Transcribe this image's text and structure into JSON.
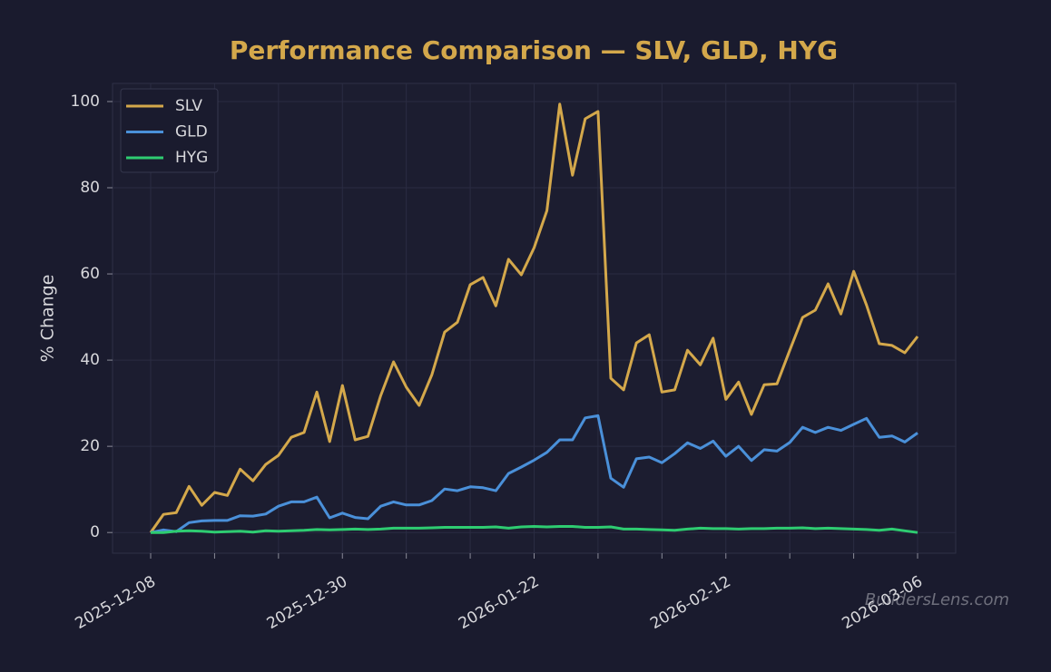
{
  "chart_data": {
    "type": "line",
    "title": "Performance Comparison — SLV, GLD, HYG",
    "y_label": "% Change",
    "watermark": "BuildersLens.com",
    "categories": [
      "2025-12-08",
      null,
      null,
      null,
      null,
      null,
      null,
      null,
      null,
      null,
      null,
      null,
      null,
      null,
      null,
      "2025-12-30",
      null,
      null,
      null,
      null,
      null,
      null,
      null,
      null,
      null,
      null,
      null,
      null,
      null,
      null,
      "2026-01-22",
      null,
      null,
      null,
      null,
      null,
      null,
      null,
      null,
      null,
      null,
      null,
      null,
      null,
      null,
      "2026-02-12",
      null,
      null,
      null,
      null,
      null,
      null,
      null,
      null,
      null,
      null,
      null,
      null,
      null,
      null,
      "2026-03-06"
    ],
    "series": [
      {
        "name": "SLV",
        "color": "#d4a84b",
        "values": [
          0,
          4.2,
          4.6,
          10.7,
          6.3,
          9.3,
          8.6,
          14.7,
          12,
          15.8,
          17.9,
          22.1,
          23.2,
          32.6,
          21.1,
          34.1,
          21.5,
          22.3,
          31.8,
          39.6,
          33.7,
          29.5,
          36.6,
          46.5,
          48.8,
          57.5,
          59.2,
          52.6,
          63.4,
          59.8,
          66.1,
          74.7,
          99.4,
          82.9,
          96,
          97.7,
          35.8,
          33.1,
          44,
          45.9,
          32.6,
          33.1,
          42.3,
          38.9,
          45.1,
          30.9,
          34.9,
          27.4,
          34.3,
          34.5,
          42.3,
          49.9,
          51.6,
          57.7,
          50.7,
          60.6,
          52.8,
          43.8,
          43.4,
          41.7,
          45.5
        ]
      },
      {
        "name": "GLD",
        "color": "#4a90d9",
        "values": [
          0,
          0.6,
          0.2,
          2.3,
          2.7,
          2.8,
          2.8,
          3.9,
          3.8,
          4.3,
          6.1,
          7.1,
          7.1,
          8.2,
          3.4,
          4.5,
          3.5,
          3.2,
          6.1,
          7.1,
          6.4,
          6.4,
          7.4,
          10.1,
          9.7,
          10.6,
          10.4,
          9.7,
          13.7,
          15.2,
          16.8,
          18.6,
          21.5,
          21.5,
          26.6,
          27.1,
          12.6,
          10.5,
          17.1,
          17.5,
          16.2,
          18.3,
          20.8,
          19.5,
          21.2,
          17.7,
          20,
          16.7,
          19.2,
          18.9,
          20.9,
          24.4,
          23.2,
          24.4,
          23.7,
          25.1,
          26.5,
          22.1,
          22.4,
          21,
          23.1
        ]
      },
      {
        "name": "HYG",
        "color": "#2ecc71",
        "values": [
          0,
          0,
          0.3,
          0.4,
          0.3,
          0.1,
          0.2,
          0.3,
          0.1,
          0.4,
          0.3,
          0.4,
          0.5,
          0.7,
          0.6,
          0.7,
          0.8,
          0.7,
          0.8,
          1.0,
          1.0,
          1.0,
          1.1,
          1.2,
          1.2,
          1.2,
          1.2,
          1.3,
          1.0,
          1.3,
          1.4,
          1.3,
          1.4,
          1.4,
          1.2,
          1.2,
          1.3,
          0.8,
          0.8,
          0.7,
          0.6,
          0.5,
          0.8,
          1.0,
          0.9,
          0.9,
          0.8,
          0.9,
          0.9,
          1.0,
          1.0,
          1.1,
          0.9,
          1.0,
          0.9,
          0.8,
          0.7,
          0.5,
          0.8,
          0.4,
          0.0
        ]
      }
    ],
    "ylim": [
      -4.8,
      104.2
    ],
    "yticks": [
      0,
      20,
      40,
      60,
      80,
      100
    ],
    "grid": true,
    "legend": "upper left"
  }
}
